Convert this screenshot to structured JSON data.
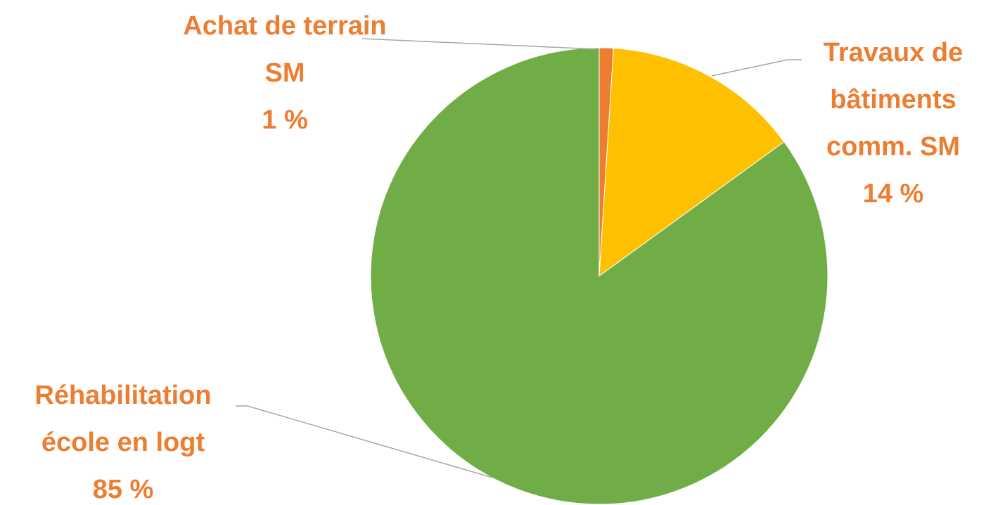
{
  "chart_data": {
    "type": "pie",
    "categories": [
      "Achat de terrain SM",
      "Travaux de bâtiments comm. SM",
      "Réhabilitation école en logt"
    ],
    "values": [
      1,
      14,
      85
    ],
    "value_labels": [
      "1 %",
      "14 %",
      "85 %"
    ],
    "colors": [
      "#ed7d31",
      "#ffc000",
      "#70ad47"
    ],
    "label_color": "#ed7d31"
  }
}
